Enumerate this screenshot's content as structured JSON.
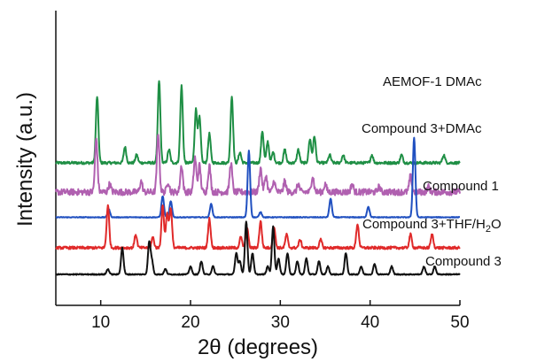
{
  "chart_data": {
    "type": "line",
    "title": "",
    "xlabel": "2θ (degrees)",
    "ylabel": "Intensity (a.u.)",
    "xlim": [
      5,
      50
    ],
    "xticks": [
      10,
      20,
      30,
      40,
      50
    ],
    "grid": false,
    "legend": "inline labels right of traces",
    "colors": {
      "AEMOF-1 DMAc": "#1f8f45",
      "Compound 3+DMAc": "#b060b0",
      "Compound 1": "#2050c0",
      "Compound 3+THF/H2O": "#e02a2a",
      "Compound 3": "#111111"
    },
    "series": [
      {
        "name": "AEMOF-1  DMAc",
        "label_main": "AEMOF-1  DMAc",
        "label_sub": "",
        "label_tail": "",
        "color": "#1f8f45",
        "offset": 4.2,
        "noise": 0.05,
        "peaks": [
          [
            9.6,
            2.5
          ],
          [
            12.7,
            0.6
          ],
          [
            14.0,
            0.3
          ],
          [
            16.5,
            3.1
          ],
          [
            17.6,
            0.5
          ],
          [
            19.0,
            2.9
          ],
          [
            20.6,
            2.0
          ],
          [
            21.0,
            1.7
          ],
          [
            22.1,
            1.1
          ],
          [
            24.6,
            2.5
          ],
          [
            25.5,
            0.4
          ],
          [
            28.0,
            1.2
          ],
          [
            28.6,
            0.8
          ],
          [
            29.2,
            0.4
          ],
          [
            30.5,
            0.5
          ],
          [
            32.0,
            0.5
          ],
          [
            33.3,
            0.9
          ],
          [
            33.8,
            1.0
          ],
          [
            35.5,
            0.3
          ],
          [
            37.0,
            0.3
          ],
          [
            40.2,
            0.3
          ],
          [
            43.5,
            0.3
          ],
          [
            48.2,
            0.3
          ]
        ]
      },
      {
        "name": "Compound 3+DMAc",
        "label_main": "Compound 3+DMAc",
        "label_sub": "",
        "label_tail": "",
        "color": "#b060b0",
        "offset": 3.1,
        "noise": 0.12,
        "peaks": [
          [
            9.5,
            2.0
          ],
          [
            11.0,
            0.3
          ],
          [
            14.5,
            0.4
          ],
          [
            16.4,
            2.2
          ],
          [
            17.5,
            0.4
          ],
          [
            19.0,
            1.0
          ],
          [
            20.5,
            1.3
          ],
          [
            21.0,
            1.0
          ],
          [
            22.1,
            1.0
          ],
          [
            24.5,
            1.1
          ],
          [
            27.8,
            0.9
          ],
          [
            28.4,
            0.6
          ],
          [
            29.3,
            0.4
          ],
          [
            30.5,
            0.4
          ],
          [
            32.0,
            0.3
          ],
          [
            33.6,
            0.6
          ],
          [
            35.0,
            0.3
          ],
          [
            38.0,
            0.3
          ],
          [
            41.0,
            0.2
          ],
          [
            44.5,
            0.6
          ],
          [
            46.5,
            0.2
          ]
        ]
      },
      {
        "name": "Compound 1",
        "label_main": "Compound 1",
        "label_sub": "",
        "label_tail": "",
        "color": "#2050c0",
        "offset": 2.15,
        "noise": 0.015,
        "peaks": [
          [
            10.9,
            0.3
          ],
          [
            16.9,
            0.8
          ],
          [
            17.8,
            0.6
          ],
          [
            22.3,
            0.5
          ],
          [
            26.5,
            2.5
          ],
          [
            27.8,
            0.2
          ],
          [
            35.6,
            0.7
          ],
          [
            39.8,
            0.4
          ],
          [
            44.9,
            3.0
          ]
        ]
      },
      {
        "name": "Compound 3+THF/H2O",
        "label_main": "Compound 3+THF/H",
        "label_sub": "2",
        "label_tail": "O",
        "color": "#e02a2a",
        "offset": 1.0,
        "noise": 0.05,
        "peaks": [
          [
            10.8,
            1.6
          ],
          [
            13.9,
            0.5
          ],
          [
            15.8,
            0.4
          ],
          [
            16.9,
            1.6
          ],
          [
            17.4,
            1.3
          ],
          [
            17.8,
            1.5
          ],
          [
            22.1,
            1.1
          ],
          [
            25.6,
            0.4
          ],
          [
            26.3,
            0.8
          ],
          [
            27.8,
            1.0
          ],
          [
            29.3,
            0.8
          ],
          [
            30.7,
            0.5
          ],
          [
            32.2,
            0.3
          ],
          [
            34.5,
            0.3
          ],
          [
            38.6,
            0.9
          ],
          [
            44.5,
            0.5
          ],
          [
            46.9,
            0.5
          ]
        ]
      },
      {
        "name": "Compound 3",
        "label_main": "Compound 3",
        "label_sub": "",
        "label_tail": "",
        "color": "#111111",
        "offset": 0.0,
        "noise": 0.02,
        "peaks": [
          [
            10.8,
            0.2
          ],
          [
            12.4,
            1.0
          ],
          [
            15.4,
            1.2
          ],
          [
            15.7,
            0.5
          ],
          [
            17.2,
            0.2
          ],
          [
            20.0,
            0.3
          ],
          [
            21.2,
            0.5
          ],
          [
            22.5,
            0.3
          ],
          [
            25.1,
            0.8
          ],
          [
            25.5,
            0.5
          ],
          [
            26.2,
            2.0
          ],
          [
            26.9,
            0.8
          ],
          [
            28.6,
            0.3
          ],
          [
            29.2,
            1.8
          ],
          [
            29.8,
            0.6
          ],
          [
            30.8,
            0.8
          ],
          [
            31.9,
            0.5
          ],
          [
            32.9,
            0.6
          ],
          [
            34.3,
            0.5
          ],
          [
            35.3,
            0.3
          ],
          [
            37.3,
            0.8
          ],
          [
            39.0,
            0.3
          ],
          [
            40.5,
            0.4
          ],
          [
            42.4,
            0.3
          ],
          [
            46.0,
            0.3
          ],
          [
            47.2,
            0.3
          ]
        ]
      }
    ]
  }
}
